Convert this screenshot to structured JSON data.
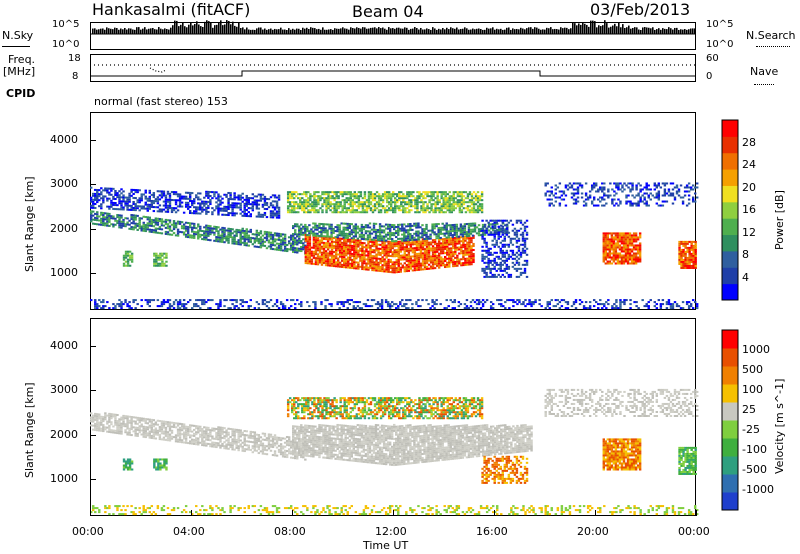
{
  "header": {
    "station": "Hankasalmi (fitACF)",
    "beam": "Beam 04",
    "date": "03/Feb/2013"
  },
  "top_panels": {
    "nsky_label": "N.Sky",
    "nsearch_label": "N.Search",
    "freq_label_1": "Freq.",
    "freq_label_2": "[MHz]",
    "nave_label": "Nave",
    "cpid_label": "CPID",
    "cpid_text": "normal (fast stereo) 153",
    "nsky_ticks": [
      "10^5",
      "10^0"
    ],
    "nsearch_ticks": [
      "10^5",
      "10^0"
    ],
    "freq_ticks": [
      "18",
      "8"
    ],
    "nave_ticks": [
      "60",
      "0"
    ]
  },
  "chart_data": [
    {
      "type": "heatmap",
      "name": "power",
      "ylabel": "Slant Range [km]",
      "yticks": [
        "4000",
        "3000",
        "2000",
        "1000"
      ],
      "ytick_values": [
        4000,
        3000,
        2000,
        1000
      ],
      "ylim": [
        180,
        4620
      ],
      "xlim": [
        0,
        24
      ],
      "colorbar_label": "Power [dB]",
      "colorbar_ticks": [
        "28",
        "24",
        "20",
        "16",
        "12",
        "8",
        "4"
      ],
      "colorbar_colors": [
        "#0000ff",
        "#1f3fa8",
        "#2f5f9f",
        "#2f8f5f",
        "#4faf4f",
        "#8fcf3f",
        "#f0e020",
        "#f5a000",
        "#f07000",
        "#e83000",
        "#ff0000"
      ]
    },
    {
      "type": "heatmap",
      "name": "velocity",
      "ylabel": "Slant Range [km]",
      "yticks": [
        "4000",
        "3000",
        "2000",
        "1000"
      ],
      "ytick_values": [
        4000,
        3000,
        2000,
        1000
      ],
      "ylim": [
        180,
        4620
      ],
      "xlim": [
        0,
        24
      ],
      "colorbar_label": "Velocity [m s^-1]",
      "colorbar_ticks": [
        "1000",
        "500",
        "100",
        "25",
        "-25",
        "-100",
        "-500",
        "-1000"
      ],
      "colorbar_colors": [
        "#1f3fcc",
        "#2f6fb0",
        "#2f9f7f",
        "#3faf3f",
        "#7fcf3f",
        "#c8c8c0",
        "#f5c000",
        "#f08000",
        "#e85000",
        "#ff0000"
      ]
    }
  ],
  "xaxis": {
    "label": "Time UT",
    "ticks": [
      "00:00",
      "04:00",
      "08:00",
      "12:00",
      "16:00",
      "20:00",
      "00:00"
    ],
    "tick_hours": [
      0,
      4,
      8,
      12,
      16,
      20,
      24
    ]
  }
}
